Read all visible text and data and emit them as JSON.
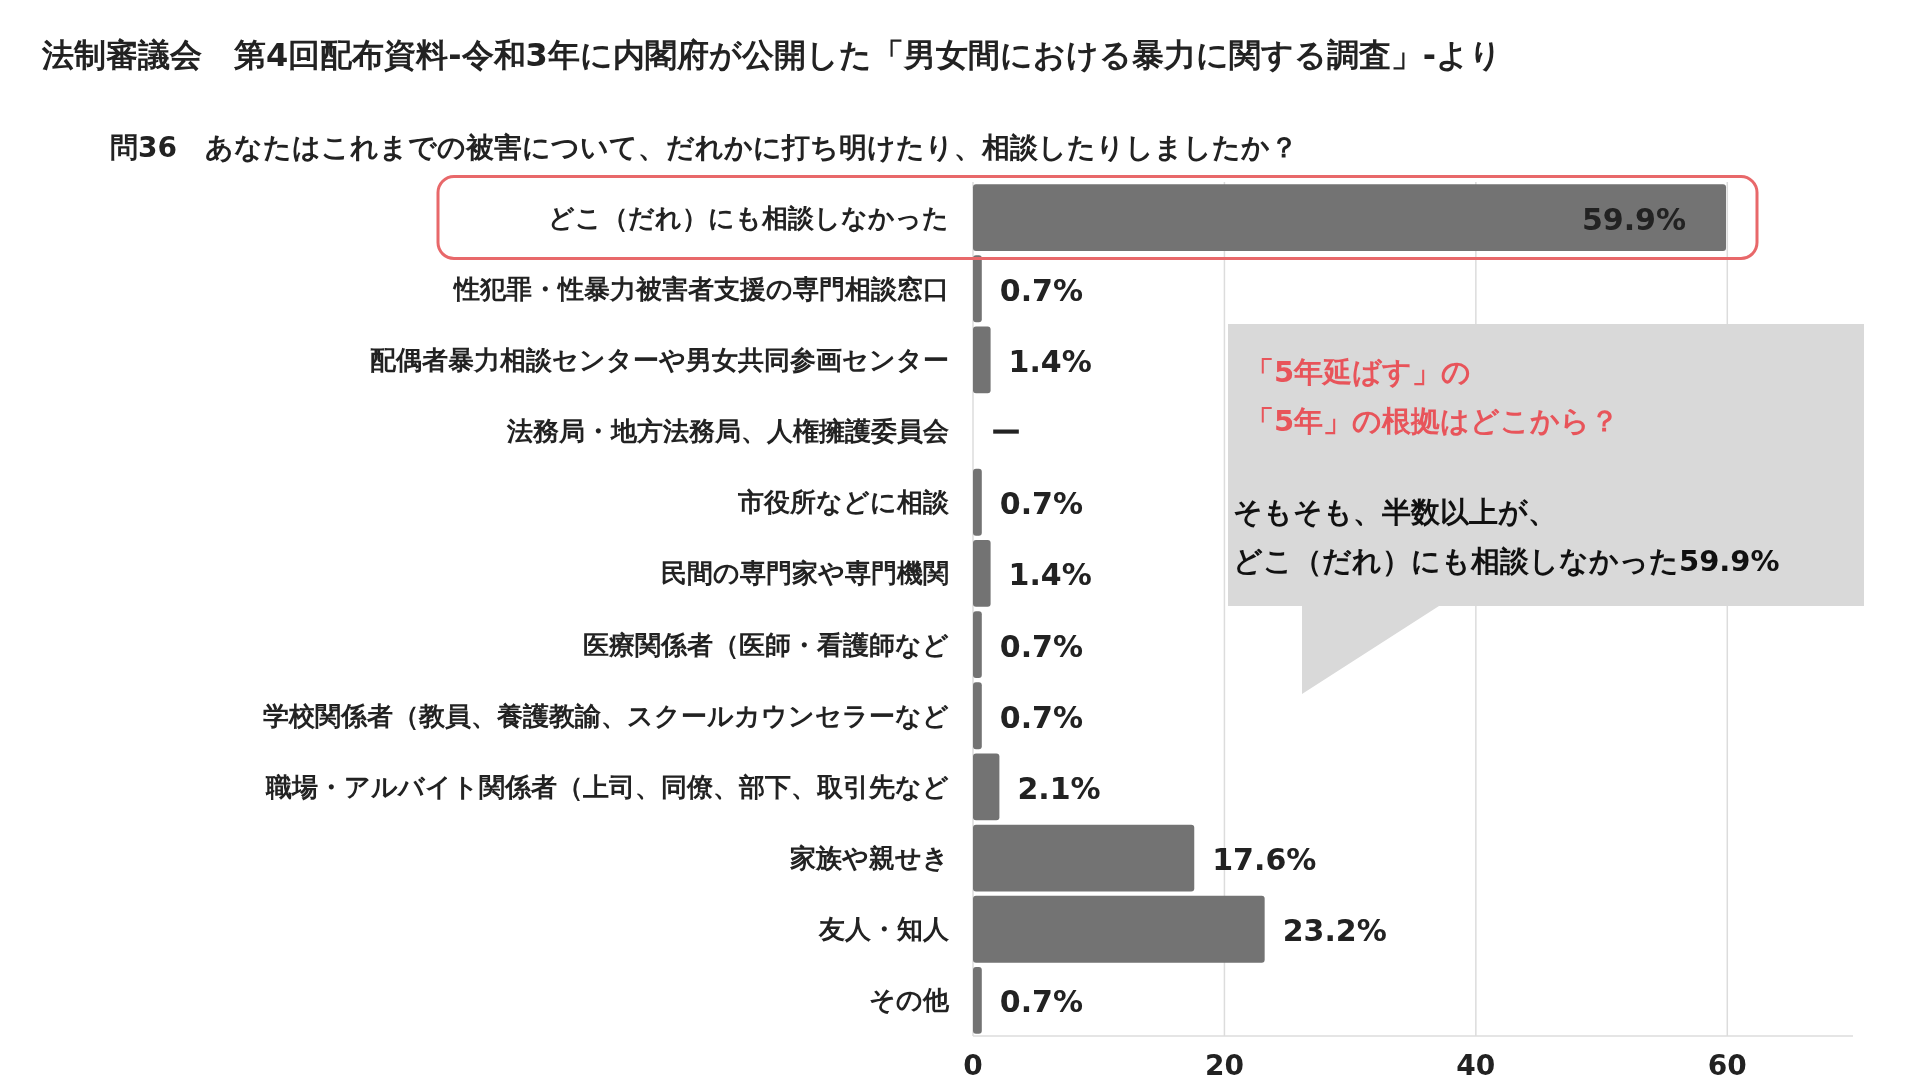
{
  "chart_data": {
    "type": "bar",
    "orientation": "horizontal",
    "title": "法制審議会　第4回配布資料-令和3年に内閣府が公開した「男女間における暴力に関する調査」-より",
    "subtitle": "問36　あなたはこれまでの被害について、だれかに打ち明けたり、相談したりしましたか？",
    "categories": [
      "どこ（だれ）にも相談しなかった",
      "性犯罪・性暴力被害者支援の専門相談窓口",
      "配偶者暴力相談センターや男女共同参画センター",
      "法務局・地方法務局、人権擁護委員会",
      "市役所などに相談",
      "民間の専門家や専門機関",
      "医療関係者（医師・看護師など",
      "学校関係者（教員、養護教諭、スクールカウンセラーなど",
      "職場・アルバイト関係者（上司、同僚、部下、取引先など",
      "家族や親せき",
      "友人・知人",
      "その他"
    ],
    "values": [
      59.9,
      0.7,
      1.4,
      null,
      0.7,
      1.4,
      0.7,
      0.7,
      2.1,
      17.6,
      23.2,
      0.7
    ],
    "value_labels": [
      "59.9%",
      "0.7%",
      "1.4%",
      "ー",
      "0.7%",
      "1.4%",
      "0.7%",
      "0.7%",
      "2.1%",
      "17.6%",
      "23.2%",
      "0.7%"
    ],
    "color": "#737373",
    "xlim": [
      0,
      70
    ],
    "xticks": [
      0,
      20,
      40,
      60
    ],
    "grid": "x",
    "annotations": [
      "「5年延ばす」の",
      "「5年」の根拠はどこから？",
      "そもそも、半数以上が、",
      "どこ（だれ）にも相談しなかった59.9%"
    ]
  }
}
